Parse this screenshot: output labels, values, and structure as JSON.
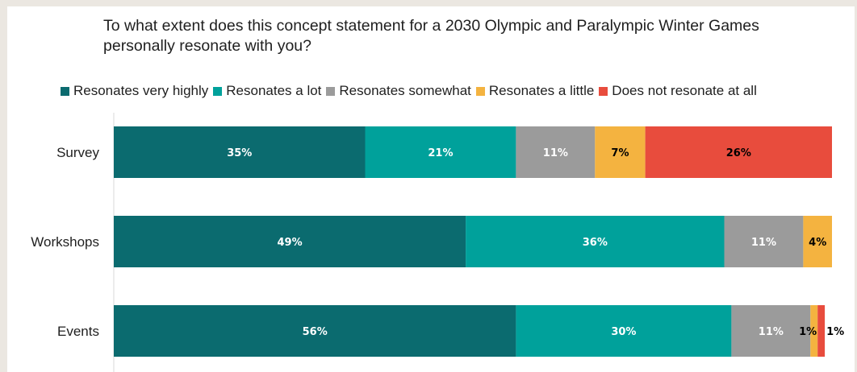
{
  "chart_data": {
    "type": "bar",
    "orientation": "horizontal",
    "stacked": true,
    "title": "To what extent does this concept statement for a 2030 Olympic and Paralympic Winter Games personally resonate with you?",
    "categories": [
      "Survey",
      "Workshops",
      "Events"
    ],
    "series": [
      {
        "name": "Resonates very highly",
        "color": "#0b6b6f",
        "label_color": "#ffffff",
        "values": [
          35,
          49,
          56
        ]
      },
      {
        "name": "Resonates a lot",
        "color": "#00a19b",
        "label_color": "#ffffff",
        "values": [
          21,
          36,
          30
        ]
      },
      {
        "name": "Resonates somewhat",
        "color": "#9b9b9b",
        "label_color": "#ffffff",
        "values": [
          11,
          11,
          11
        ]
      },
      {
        "name": "Resonates a little",
        "color": "#f4b340",
        "label_color": "#000000",
        "values": [
          7,
          4,
          1
        ]
      },
      {
        "name": "Does not resonate at all",
        "color": "#e84c3d",
        "label_color": "#000000",
        "values": [
          26,
          0,
          1
        ]
      }
    ],
    "data_labels": [
      [
        "35%",
        "21%",
        "11%",
        "7%",
        "26%"
      ],
      [
        "49%",
        "36%",
        "11%",
        "4%",
        ""
      ],
      [
        "56%",
        "30%",
        "11%",
        "1%",
        "1%"
      ]
    ],
    "xlim": [
      0,
      100
    ],
    "legend_position": "top",
    "grid": false
  }
}
